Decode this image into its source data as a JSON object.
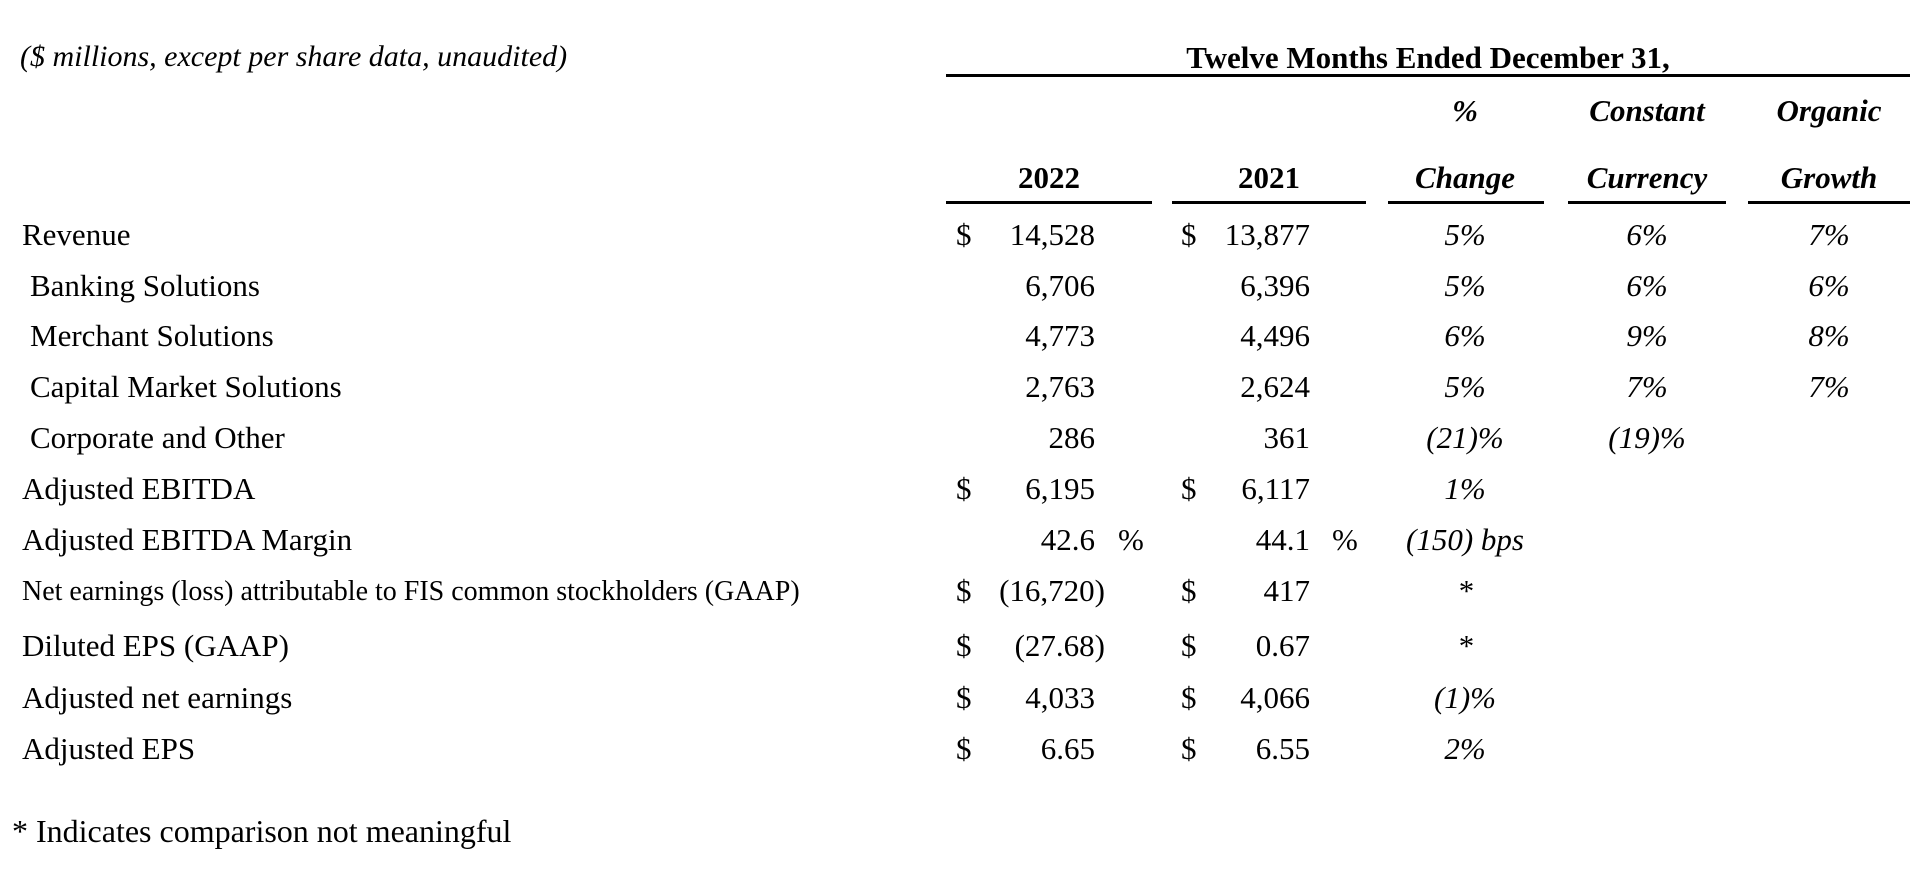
{
  "units_note": "($ millions, except per share data, unaudited)",
  "group_title": "Twelve Months Ended December 31,",
  "columns": {
    "y2022": "2022",
    "y2021": "2021",
    "pct_top": "%",
    "pct_bottom": "Change",
    "cc_top": "Constant",
    "cc_bottom": "Currency",
    "og_top": "Organic",
    "og_bottom": "Growth"
  },
  "rows": [
    {
      "label": "Revenue",
      "d22": "$",
      "v22": "14,528",
      "d21": "$",
      "v21": "13,877",
      "change": "5%",
      "cc": "6%",
      "og": "7%"
    },
    {
      "label": "Banking Solutions",
      "d22": "",
      "v22": "6,706",
      "d21": "",
      "v21": "6,396",
      "change": "5%",
      "cc": "6%",
      "og": "6%"
    },
    {
      "label": "Merchant Solutions",
      "d22": "",
      "v22": "4,773",
      "d21": "",
      "v21": "4,496",
      "change": "6%",
      "cc": "9%",
      "og": "8%"
    },
    {
      "label": "Capital Market Solutions",
      "d22": "",
      "v22": "2,763",
      "d21": "",
      "v21": "2,624",
      "change": "5%",
      "cc": "7%",
      "og": "7%"
    },
    {
      "label": "Corporate and Other",
      "d22": "",
      "v22": "286",
      "d21": "",
      "v21": "361",
      "change": "(21)%",
      "cc": "(19)%",
      "og": ""
    },
    {
      "label": "Adjusted EBITDA",
      "d22": "$",
      "v22": "6,195",
      "d21": "$",
      "v21": "6,117",
      "change": "1%",
      "cc": "",
      "og": ""
    },
    {
      "label": "Adjusted EBITDA Margin",
      "d22": "",
      "v22": "42.6",
      "p22": "%",
      "d21": "",
      "v21": "44.1",
      "p21": "%",
      "change": "(150) bps",
      "cc": "",
      "og": ""
    },
    {
      "label": "Net earnings (loss) attributable to FIS common stockholders (GAAP)",
      "d22": "$",
      "v22": "(16,720)",
      "d21": "$",
      "v21": "417",
      "change": "*",
      "cc": "",
      "og": ""
    },
    {
      "label": "Diluted EPS (GAAP)",
      "d22": "$",
      "v22": "(27.68)",
      "d21": "$",
      "v21": "0.67",
      "change": "*",
      "cc": "",
      "og": ""
    },
    {
      "label": "Adjusted net earnings",
      "d22": "$",
      "v22": "4,033",
      "d21": "$",
      "v21": "4,066",
      "change": "(1)%",
      "cc": "",
      "og": ""
    },
    {
      "label": "Adjusted EPS",
      "d22": "$",
      "v22": "6.65",
      "d21": "$",
      "v21": "6.55",
      "change": "2%",
      "cc": "",
      "og": ""
    }
  ],
  "footnote": "* Indicates comparison not meaningful"
}
